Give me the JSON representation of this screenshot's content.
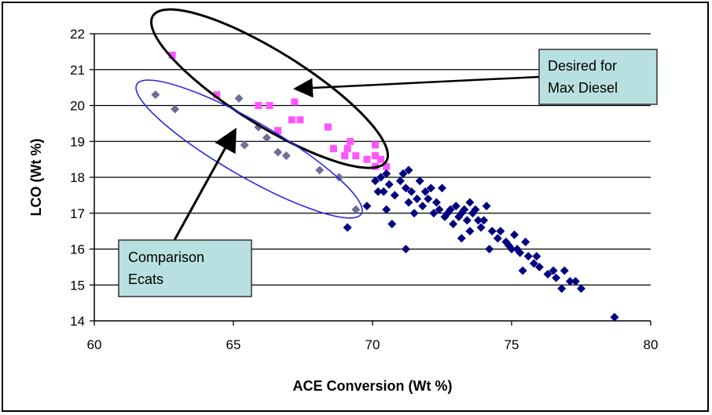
{
  "chart_data": {
    "type": "scatter",
    "xlabel": "ACE Conversion (Wt %)",
    "ylabel": "LCO (Wt %)",
    "xlim": [
      60,
      80
    ],
    "ylim": [
      14,
      22
    ],
    "x_ticks": [
      60,
      65,
      70,
      75,
      80
    ],
    "y_ticks": [
      14,
      15,
      16,
      17,
      18,
      19,
      20,
      21,
      22
    ],
    "grid": "horizontal",
    "colors": {
      "magenta": "#ff55ff",
      "gray": "#6e6e96",
      "navy": "#000080",
      "callout_fill": "#b9e0e0",
      "blue_ellipse": "#2a2ae0"
    },
    "series": [
      {
        "marker": "square",
        "color": "#ff55ff",
        "points": [
          [
            62.8,
            21.4
          ],
          [
            64.4,
            20.3
          ],
          [
            65.9,
            20.0
          ],
          [
            66.3,
            20.0
          ],
          [
            66.6,
            19.3
          ],
          [
            67.2,
            20.1
          ],
          [
            67.1,
            19.6
          ],
          [
            67.4,
            19.6
          ],
          [
            68.4,
            19.4
          ],
          [
            68.6,
            18.8
          ],
          [
            69.0,
            18.6
          ],
          [
            69.2,
            19.0
          ],
          [
            69.1,
            18.8
          ],
          [
            69.4,
            18.6
          ],
          [
            69.8,
            18.5
          ],
          [
            70.1,
            18.9
          ],
          [
            70.1,
            18.6
          ],
          [
            70.1,
            18.3
          ],
          [
            70.3,
            18.5
          ],
          [
            70.5,
            18.3
          ]
        ]
      },
      {
        "marker": "diamond",
        "color": "#6e6e96",
        "points": [
          [
            62.2,
            20.3
          ],
          [
            62.9,
            19.9
          ],
          [
            65.2,
            20.2
          ],
          [
            65.4,
            18.9
          ],
          [
            65.9,
            19.4
          ],
          [
            66.2,
            19.1
          ],
          [
            66.6,
            18.7
          ],
          [
            66.9,
            18.6
          ],
          [
            68.1,
            18.2
          ],
          [
            68.8,
            18.0
          ],
          [
            69.4,
            17.1
          ]
        ]
      },
      {
        "marker": "diamond",
        "color": "#000080",
        "points": [
          [
            69.1,
            16.6
          ],
          [
            69.8,
            17.2
          ],
          [
            70.1,
            17.9
          ],
          [
            70.2,
            17.6
          ],
          [
            70.3,
            18.0
          ],
          [
            70.4,
            17.6
          ],
          [
            70.5,
            18.1
          ],
          [
            70.6,
            17.8
          ],
          [
            70.5,
            17.1
          ],
          [
            70.7,
            16.7
          ],
          [
            70.8,
            17.5
          ],
          [
            71.0,
            17.9
          ],
          [
            71.1,
            18.1
          ],
          [
            71.2,
            17.7
          ],
          [
            71.3,
            18.2
          ],
          [
            71.3,
            17.3
          ],
          [
            71.2,
            16.0
          ],
          [
            71.4,
            17.6
          ],
          [
            71.5,
            17.0
          ],
          [
            71.6,
            17.4
          ],
          [
            71.7,
            17.9
          ],
          [
            71.8,
            17.2
          ],
          [
            71.9,
            17.6
          ],
          [
            72.0,
            17.4
          ],
          [
            72.1,
            17.7
          ],
          [
            72.2,
            17.0
          ],
          [
            72.3,
            17.3
          ],
          [
            72.4,
            17.1
          ],
          [
            72.5,
            17.7
          ],
          [
            72.6,
            16.9
          ],
          [
            72.7,
            17.0
          ],
          [
            72.8,
            17.1
          ],
          [
            72.9,
            16.7
          ],
          [
            73.0,
            17.2
          ],
          [
            73.1,
            16.9
          ],
          [
            73.2,
            17.0
          ],
          [
            73.2,
            16.3
          ],
          [
            73.3,
            17.1
          ],
          [
            73.4,
            16.8
          ],
          [
            73.5,
            17.3
          ],
          [
            73.5,
            16.5
          ],
          [
            73.6,
            17.0
          ],
          [
            73.7,
            17.1
          ],
          [
            73.8,
            16.8
          ],
          [
            73.9,
            16.6
          ],
          [
            74.0,
            16.8
          ],
          [
            74.1,
            17.2
          ],
          [
            74.2,
            16.0
          ],
          [
            74.3,
            16.5
          ],
          [
            74.5,
            16.3
          ],
          [
            74.6,
            16.5
          ],
          [
            74.8,
            16.2
          ],
          [
            74.9,
            16.1
          ],
          [
            75.0,
            16.0
          ],
          [
            75.1,
            16.4
          ],
          [
            75.2,
            16.0
          ],
          [
            75.3,
            15.9
          ],
          [
            75.4,
            15.4
          ],
          [
            75.5,
            16.2
          ],
          [
            75.6,
            15.8
          ],
          [
            75.8,
            15.6
          ],
          [
            75.9,
            15.8
          ],
          [
            76.0,
            15.5
          ],
          [
            76.3,
            15.3
          ],
          [
            76.5,
            15.4
          ],
          [
            76.6,
            15.2
          ],
          [
            76.8,
            14.9
          ],
          [
            76.9,
            15.4
          ],
          [
            77.1,
            15.1
          ],
          [
            77.3,
            15.1
          ],
          [
            77.5,
            14.9
          ],
          [
            78.7,
            14.1
          ]
        ]
      }
    ]
  },
  "annotations": {
    "max_diesel": {
      "line1": "Desired for",
      "line2": "Max Diesel"
    },
    "comparison": {
      "line1": "Comparison",
      "line2": "Ecats"
    }
  }
}
